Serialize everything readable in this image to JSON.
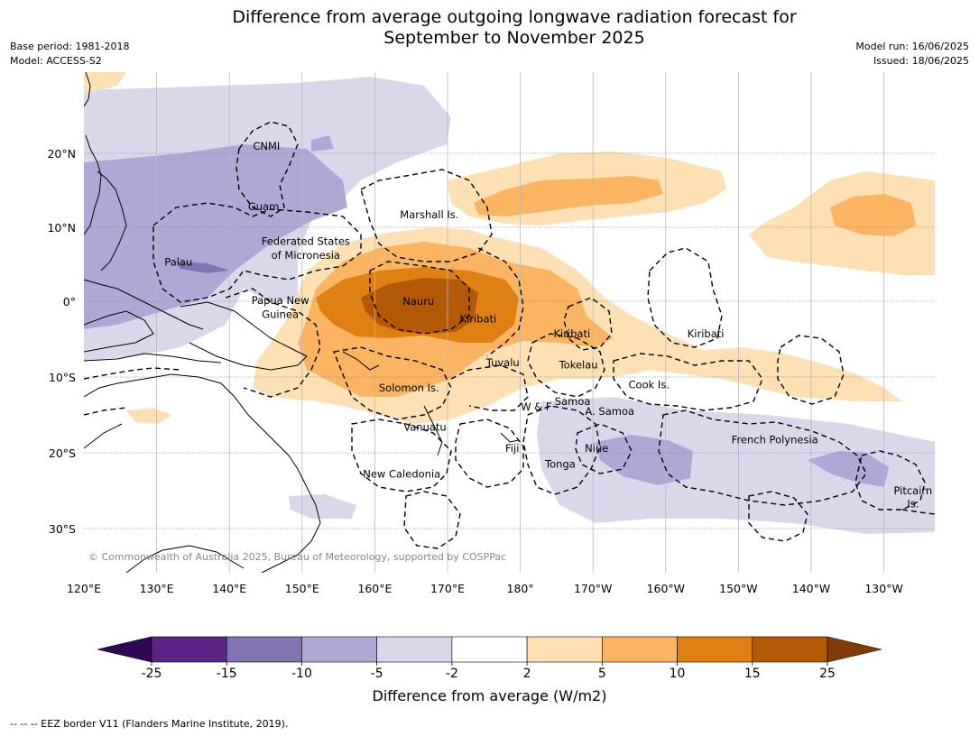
{
  "header": {
    "title_line1": "Difference from average outgoing longwave radiation forecast for",
    "title_line2": "September to November 2025",
    "base_period": "Base period: 1981-2018",
    "model": "Model: ACCESS-S2",
    "model_run": "Model run: 16/06/2025",
    "issued": "Issued: 18/06/2025"
  },
  "map": {
    "lon_labels": [
      "120°E",
      "130°E",
      "140°E",
      "150°E",
      "160°E",
      "170°E",
      "180°",
      "170°W",
      "160°W",
      "150°W",
      "140°W",
      "130°W"
    ],
    "lat_labels": [
      "20°N",
      "10°N",
      "0°",
      "10°S",
      "20°S",
      "30°S"
    ],
    "copyright": "© Commonwealth of Australia 2025, Bureau of Meteorology, supported by COSPPac",
    "places": [
      {
        "name": "CNMI",
        "lon": 145.1,
        "lat": 21.0
      },
      {
        "name": "Guam",
        "lon": 144.7,
        "lat": 12.8
      },
      {
        "name": "Marshall Is.",
        "lon": 167.5,
        "lat": 11.7
      },
      {
        "name": "Federated States",
        "lon": 150.5,
        "lat": 8.1
      },
      {
        "name": "of Micronesia",
        "lon": 150.5,
        "lat": 6.2
      },
      {
        "name": "Palau",
        "lon": 133.0,
        "lat": 5.3
      },
      {
        "name": "Nauru",
        "lon": 166.0,
        "lat": 0.0
      },
      {
        "name": "Papua New",
        "lon": 147.0,
        "lat": 0.1
      },
      {
        "name": "Guinea",
        "lon": 147.0,
        "lat": -1.7
      },
      {
        "name": "Kiribati",
        "lon": 174.2,
        "lat": -2.3
      },
      {
        "name": "Kiribati",
        "lon": 187.1,
        "lat": -4.3
      },
      {
        "name": "Kiribati",
        "lon": 205.5,
        "lat": -4.3
      },
      {
        "name": "Tuvalu",
        "lon": 177.6,
        "lat": -8.1
      },
      {
        "name": "Tokelau",
        "lon": 188.0,
        "lat": -8.4
      },
      {
        "name": "Solomon Is.",
        "lon": 164.7,
        "lat": -11.4
      },
      {
        "name": "Cook Is.",
        "lon": 197.7,
        "lat": -11.0
      },
      {
        "name": "Samoa",
        "lon": 187.2,
        "lat": -13.2
      },
      {
        "name": "W & F",
        "lon": 182.2,
        "lat": -13.9
      },
      {
        "name": "A. Samoa",
        "lon": 192.3,
        "lat": -14.5
      },
      {
        "name": "Vanuatu",
        "lon": 166.9,
        "lat": -16.6
      },
      {
        "name": "French Polynesia",
        "lon": 215.0,
        "lat": -18.3
      },
      {
        "name": "Fiji",
        "lon": 178.9,
        "lat": -19.4
      },
      {
        "name": "Niue",
        "lon": 190.5,
        "lat": -19.4
      },
      {
        "name": "Tonga",
        "lon": 185.5,
        "lat": -21.5
      },
      {
        "name": "New Caledonia",
        "lon": 163.7,
        "lat": -22.8
      },
      {
        "name": "Pitcairn",
        "lon": 234.0,
        "lat": -25.0
      },
      {
        "name": "Is.",
        "lon": 234.0,
        "lat": -26.7
      }
    ]
  },
  "colorbar": {
    "ticks": [
      "-25",
      "-15",
      "-10",
      "-5",
      "-2",
      "2",
      "5",
      "10",
      "15",
      "25"
    ],
    "colors": [
      "#5a2587",
      "#8373b0",
      "#b0a8d4",
      "#d8d8ea",
      "#ffffff",
      "#fde0b3",
      "#fbb462",
      "#e08012",
      "#b35906"
    ],
    "under_color": "#2e0854",
    "over_color": "#7f3b08",
    "label": "Difference from average (W/m2)"
  },
  "footer": {
    "legend": "--  --  -- EEZ border V11 (Flanders Marine Institute, 2019)."
  }
}
